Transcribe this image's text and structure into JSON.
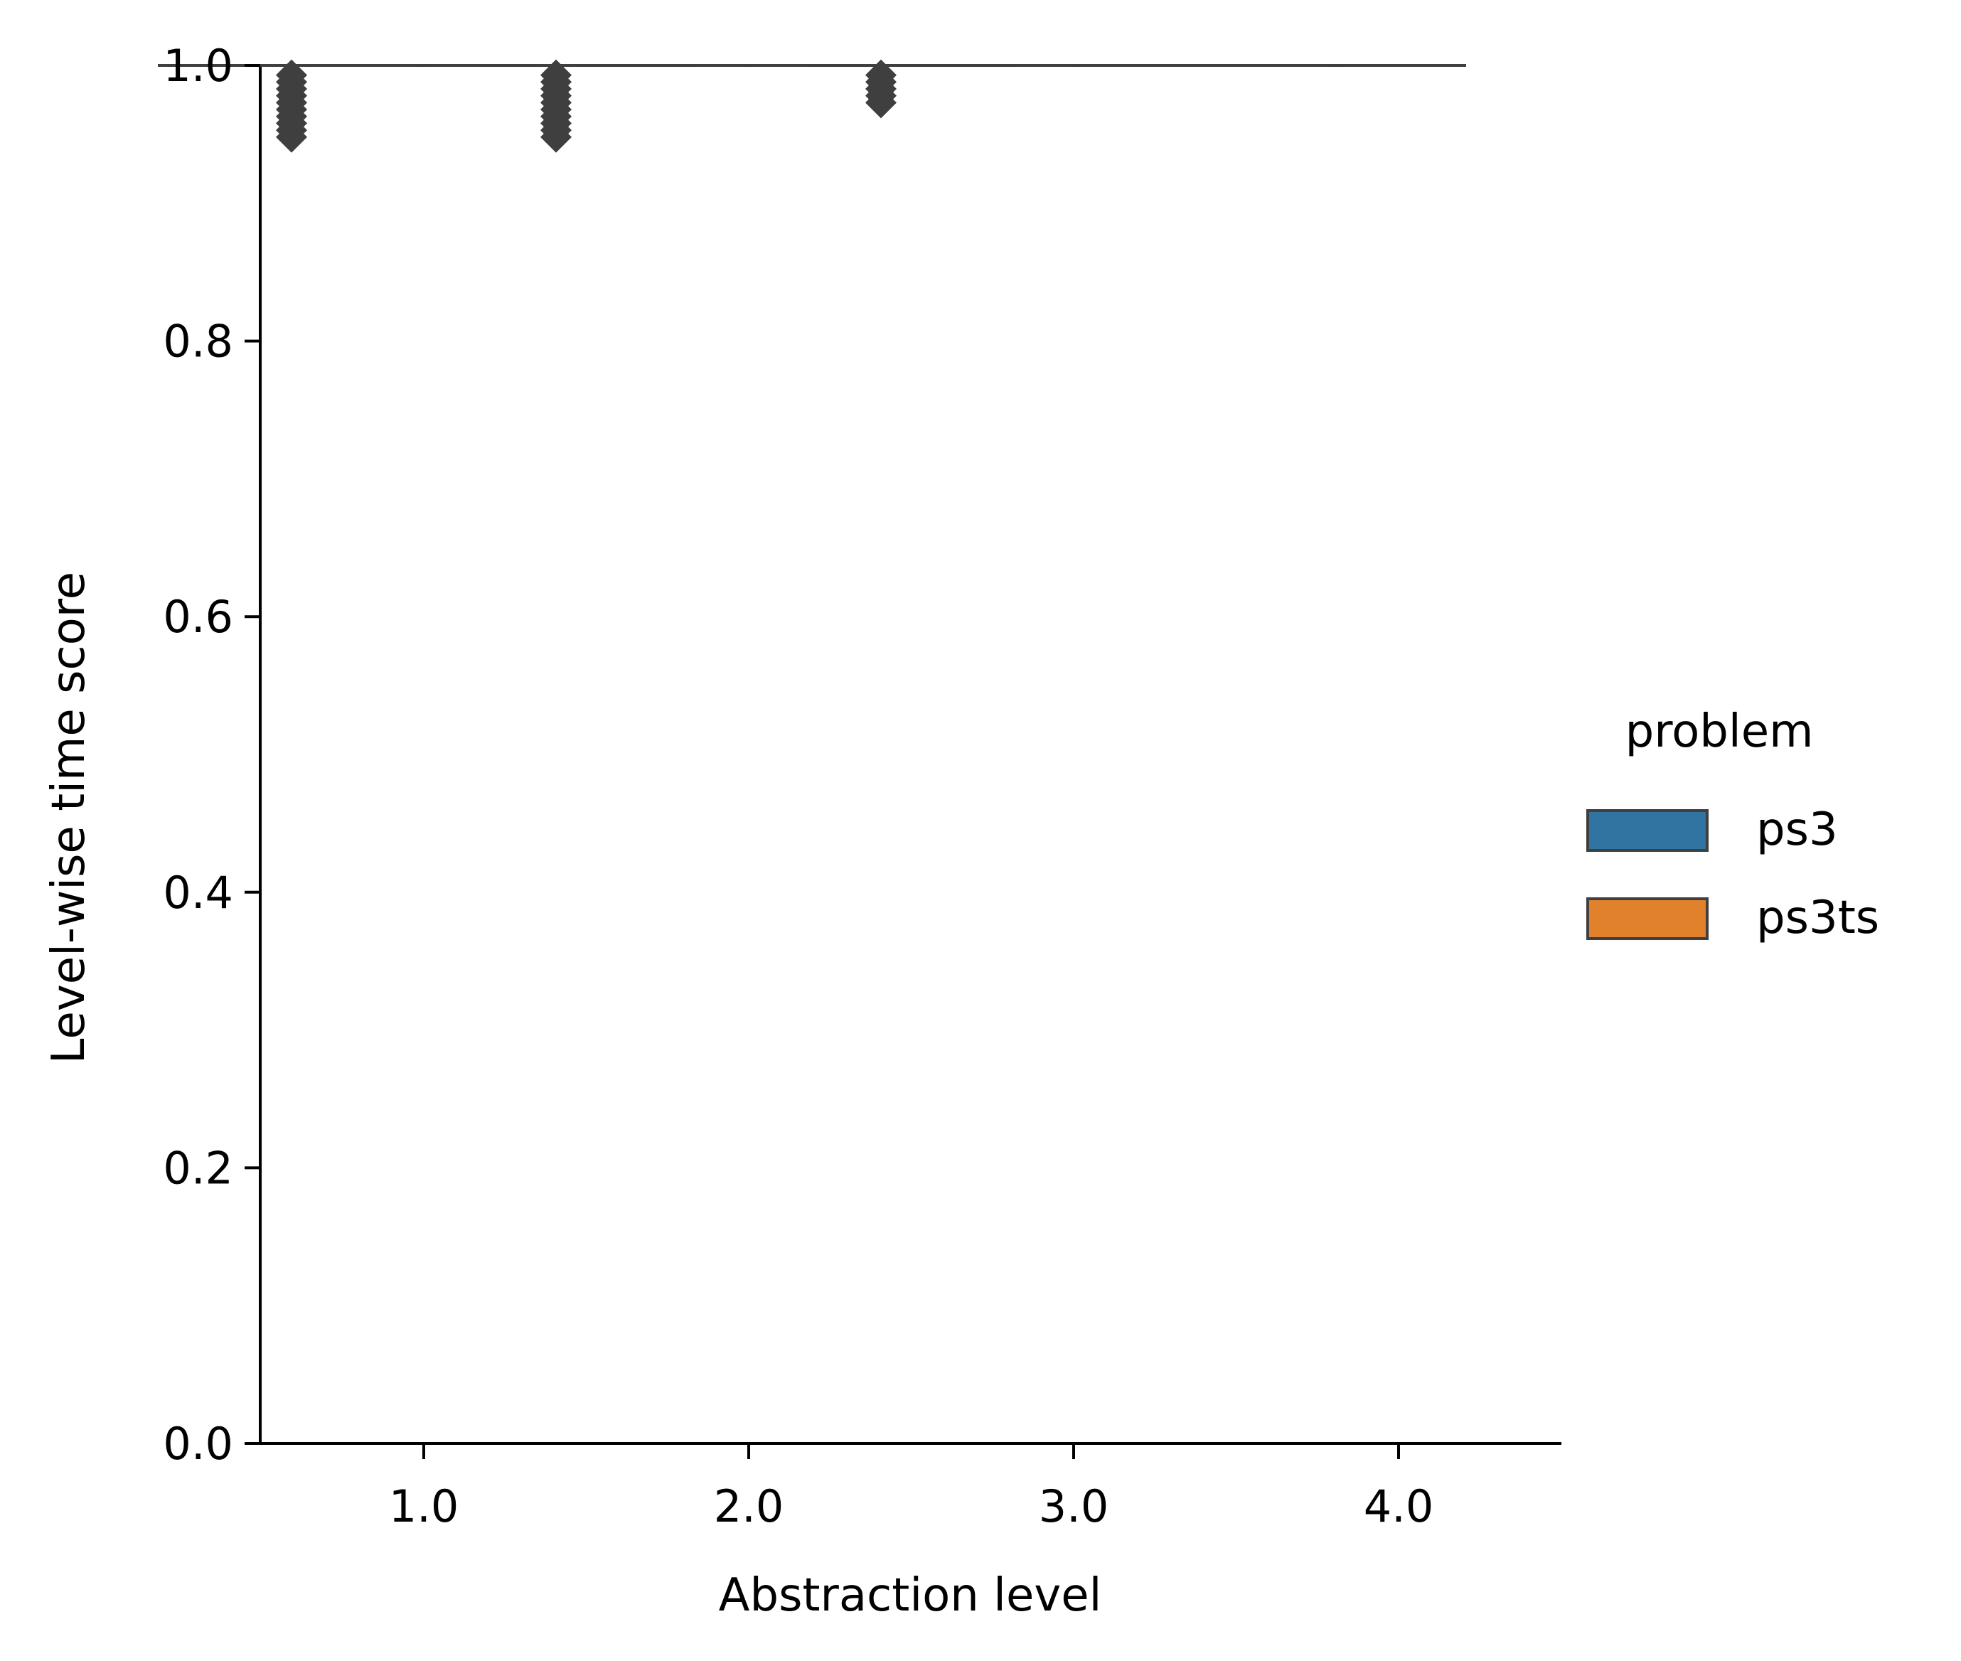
{
  "chart_data": {
    "type": "box",
    "xlabel": "Abstraction level",
    "ylabel": "Level-wise time score",
    "categories": [
      "1.0",
      "2.0",
      "3.0",
      "4.0"
    ],
    "ylim": [
      0.0,
      1.0
    ],
    "yticks": [
      "0.0",
      "0.2",
      "0.4",
      "0.6",
      "0.8",
      "1.0"
    ],
    "legend": {
      "title": "problem",
      "placement": "center-right"
    },
    "series": [
      {
        "name": "ps3",
        "color": "#3274a1",
        "boxes": [
          {
            "category": "1.0",
            "q1": 1.0,
            "median": 1.0,
            "q3": 1.0,
            "whisker_low": 1.0,
            "whisker_high": 1.0,
            "outliers": [
              0.993,
              0.988,
              0.983,
              0.978,
              0.973,
              0.968,
              0.963,
              0.958,
              0.953,
              0.948
            ]
          },
          {
            "category": "2.0",
            "q1": 1.0,
            "median": 1.0,
            "q3": 1.0,
            "whisker_low": 1.0,
            "whisker_high": 1.0,
            "outliers": []
          },
          {
            "category": "3.0",
            "q1": 1.0,
            "median": 1.0,
            "q3": 1.0,
            "whisker_low": 1.0,
            "whisker_high": 1.0,
            "outliers": []
          },
          {
            "category": "4.0",
            "q1": 1.0,
            "median": 1.0,
            "q3": 1.0,
            "whisker_low": 1.0,
            "whisker_high": 1.0,
            "outliers": [],
            "single_box": true
          }
        ]
      },
      {
        "name": "ps3ts",
        "color": "#e1812c",
        "boxes": [
          {
            "category": "1.0",
            "q1": 1.0,
            "median": 1.0,
            "q3": 1.0,
            "whisker_low": 1.0,
            "whisker_high": 1.0,
            "outliers": [
              0.993,
              0.988,
              0.983,
              0.978,
              0.973,
              0.968,
              0.963,
              0.958,
              0.953,
              0.948
            ]
          },
          {
            "category": "2.0",
            "q1": 1.0,
            "median": 1.0,
            "q3": 1.0,
            "whisker_low": 1.0,
            "whisker_high": 1.0,
            "outliers": [
              0.993,
              0.988,
              0.983,
              0.978,
              0.973
            ]
          },
          {
            "category": "3.0",
            "q1": 1.0,
            "median": 1.0,
            "q3": 1.0,
            "whisker_low": 1.0,
            "whisker_high": 1.0,
            "outliers": []
          }
        ]
      }
    ],
    "edge_color": "#3f3f3f",
    "grid": false
  }
}
